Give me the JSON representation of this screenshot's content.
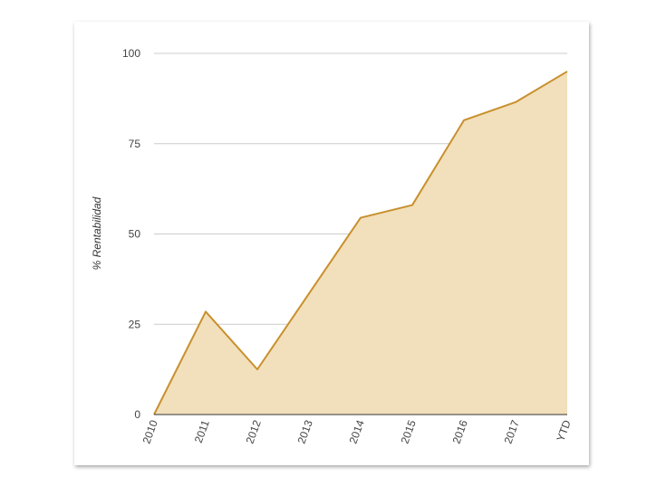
{
  "chart_data": {
    "type": "area",
    "title": "",
    "xlabel": "",
    "ylabel": "% Rentabilidad",
    "categories": [
      "2010",
      "2011",
      "2012",
      "2013",
      "2014",
      "2015",
      "2016",
      "2017",
      "YTD"
    ],
    "values": [
      0,
      28.5,
      12.5,
      33.5,
      54.5,
      58,
      81.5,
      86.5,
      95
    ],
    "ylim": [
      0,
      100
    ],
    "yticks": [
      0,
      25,
      50,
      75,
      100
    ],
    "grid": true,
    "legend": "none",
    "colors": {
      "line": "#c8902e",
      "fill": "#f2dfbb",
      "grid": "#cccccc",
      "baseline": "#333333"
    }
  }
}
